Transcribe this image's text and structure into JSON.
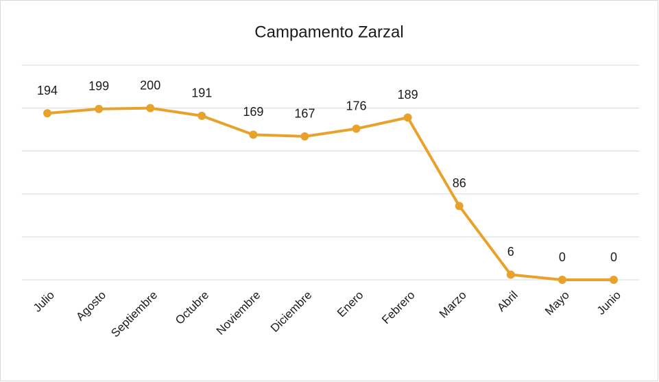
{
  "chart_data": {
    "type": "line",
    "title": "Campamento Zarzal",
    "categories": [
      "Julio",
      "Agosto",
      "Septiembre",
      "Octubre",
      "Noviembre",
      "Diciembre",
      "Enero",
      "Febrero",
      "Marzo",
      "Abril",
      "Mayo",
      "Junio"
    ],
    "values": [
      194,
      199,
      200,
      191,
      169,
      167,
      176,
      189,
      86,
      6,
      0,
      0
    ],
    "color": "#e8a22c",
    "ylim": [
      0,
      250
    ],
    "yticks": [
      0,
      50,
      100,
      150,
      200,
      250
    ],
    "grid": true
  }
}
